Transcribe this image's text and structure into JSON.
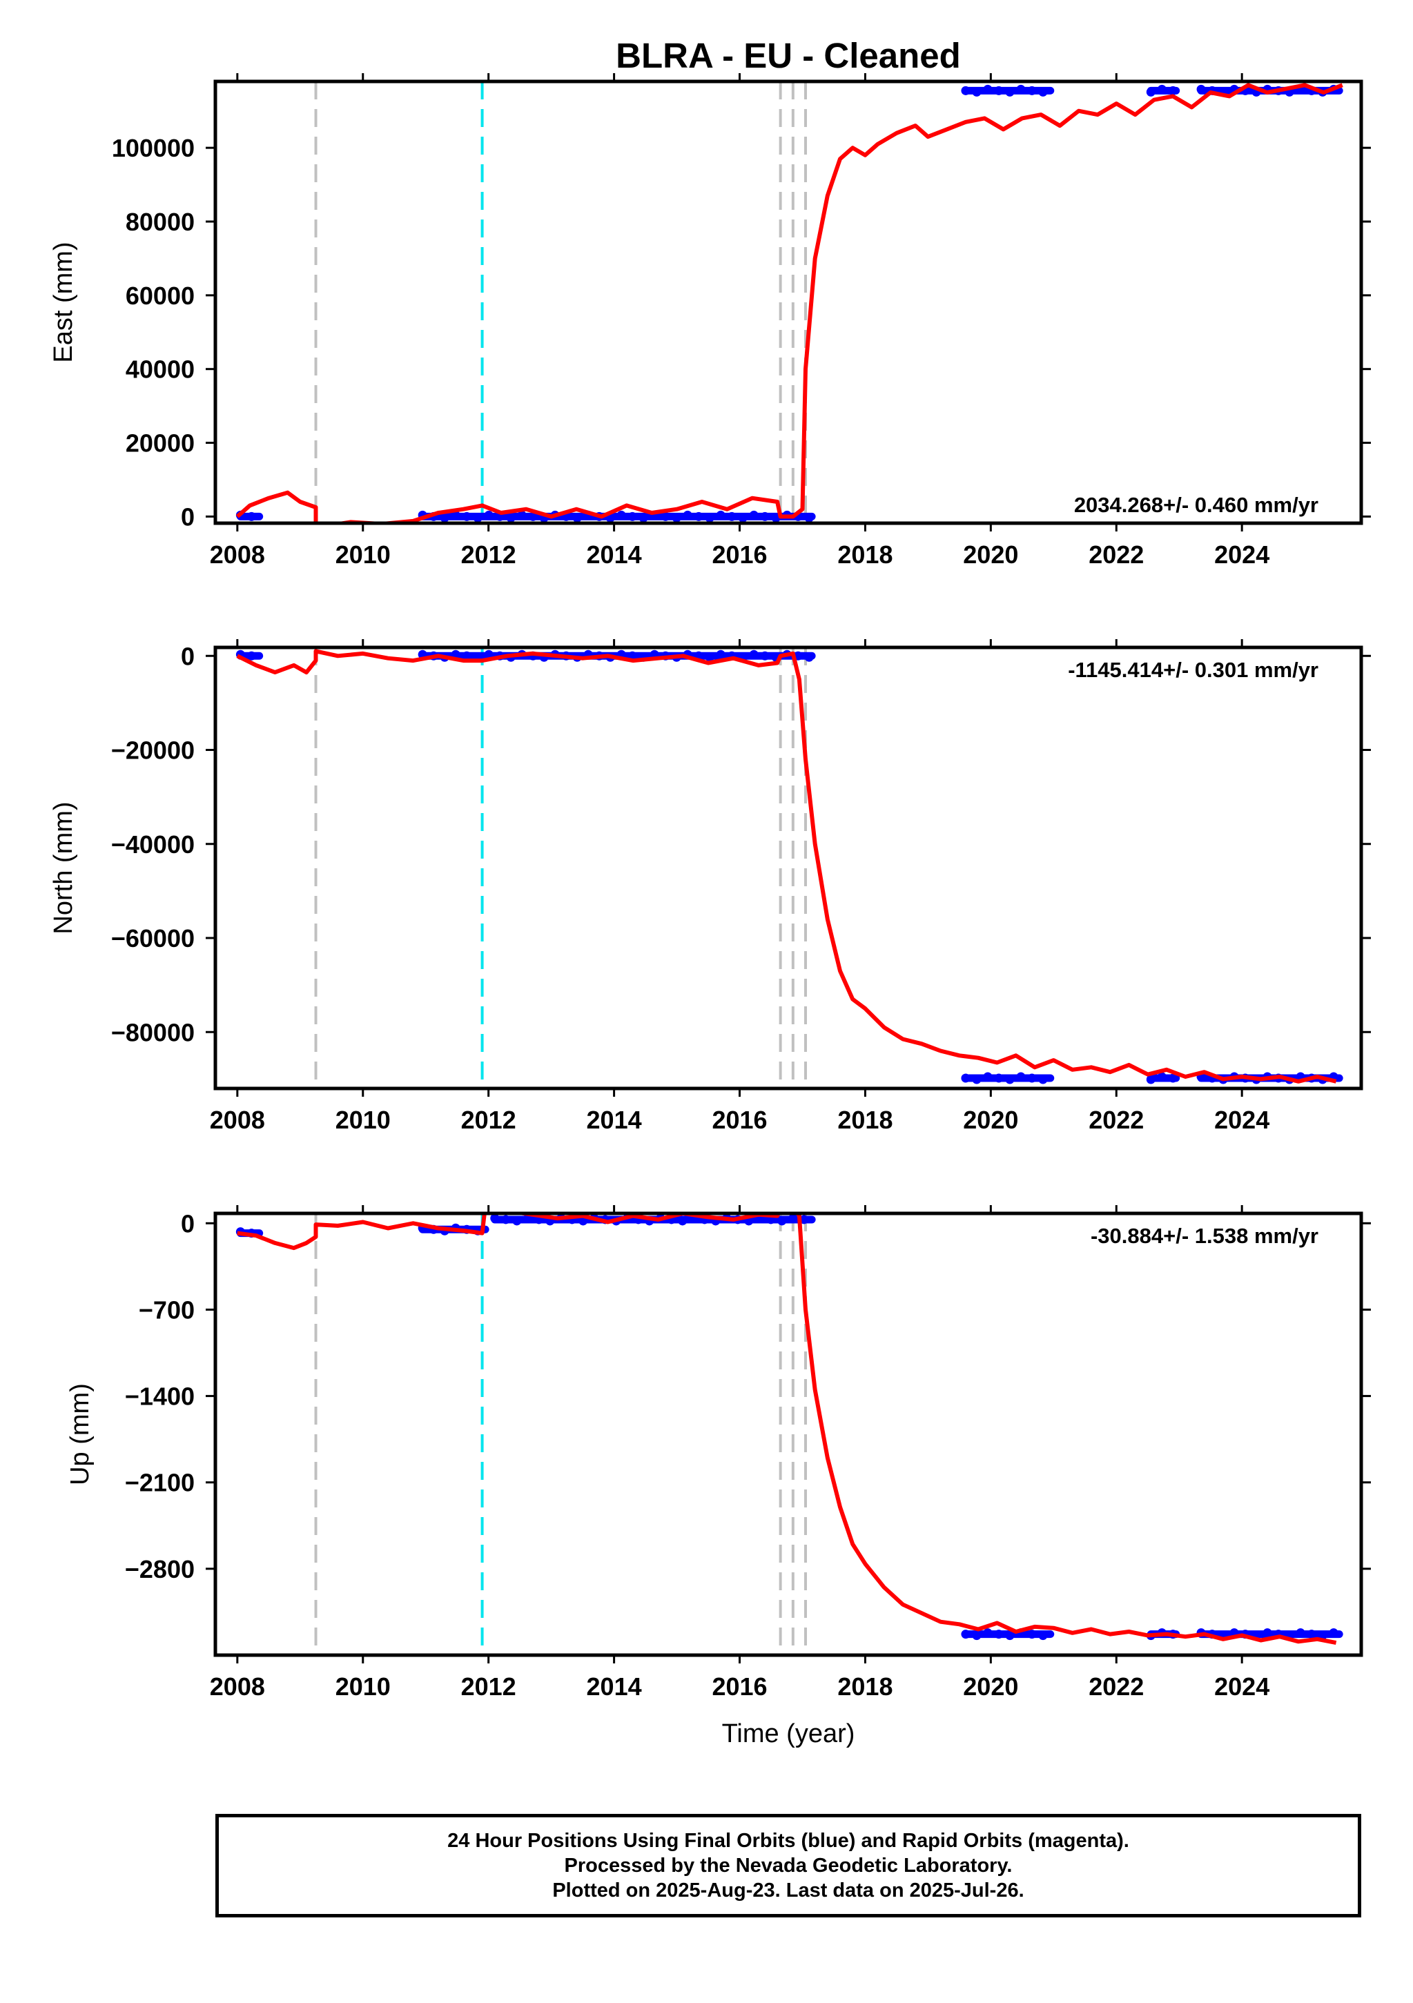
{
  "chart_data": {
    "title": "BLRA  - EU - Cleaned",
    "xlabel": "Time (year)",
    "x_ticks": [
      "2008",
      "2010",
      "2012",
      "2014",
      "2016",
      "2018",
      "2020",
      "2022",
      "2024"
    ],
    "xlim": [
      2007.65,
      2025.9
    ],
    "equipment_changes_gray": [
      2009.25,
      2016.65,
      2016.85,
      2017.05
    ],
    "earthquake_lines_cyan": [
      2011.9
    ],
    "colors": {
      "final_orbits": "#0000ff",
      "model_fit": "#ff0000",
      "equipment": "#c0c0c0",
      "earthquake": "#00e5ee"
    },
    "panels": [
      {
        "ylabel": "East (mm)",
        "ylim": [
          -1800,
          118000
        ],
        "y_ticks": [
          0,
          20000,
          40000,
          60000,
          80000,
          100000
        ],
        "y_tick_labels": [
          "0",
          "20000",
          "40000",
          "60000",
          "80000",
          "100000"
        ],
        "rate_text": "2034.268+/- 0.460 mm/yr",
        "rate_position": "bottom-right",
        "series": [
          {
            "type": "scatter",
            "color": "#0000ff",
            "segments": [
              {
                "x": [
                  2008.05,
                  2008.35
                ],
                "y": 0
              },
              {
                "x": [
                  2010.95,
                  2017.15
                ],
                "y": 0
              },
              {
                "x": [
                  2019.6,
                  2020.95
                ],
                "y": 115500
              },
              {
                "x": [
                  2022.55,
                  2022.95
                ],
                "y": 115500
              },
              {
                "x": [
                  2023.35,
                  2025.55
                ],
                "y": 115500
              }
            ]
          },
          {
            "type": "line",
            "color": "#ff0000",
            "x": [
              2008.0,
              2008.2,
              2008.5,
              2008.8,
              2009.0,
              2009.25,
              2009.25,
              2009.8,
              2010.3,
              2010.8,
              2011.2,
              2011.6,
              2011.9,
              2012.2,
              2012.6,
              2013.0,
              2013.4,
              2013.8,
              2014.2,
              2014.6,
              2015.0,
              2015.4,
              2015.8,
              2016.2,
              2016.6,
              2016.65,
              2016.85,
              2017.0,
              2017.05,
              2017.2,
              2017.4,
              2017.6,
              2017.8,
              2018.0,
              2018.2,
              2018.5,
              2018.8,
              2019.0,
              2019.3,
              2019.6,
              2019.9,
              2020.2,
              2020.5,
              2020.8,
              2021.1,
              2021.4,
              2021.7,
              2022.0,
              2022.3,
              2022.6,
              2022.9,
              2023.2,
              2023.5,
              2023.8,
              2024.1,
              2024.4,
              2024.7,
              2025.0,
              2025.3,
              2025.6
            ],
            "y": [
              0,
              3000,
              5000,
              6500,
              4000,
              2500,
              -3000,
              -1500,
              -2000,
              -1200,
              1000,
              2000,
              3000,
              1000,
              2000,
              0,
              2000,
              0,
              3000,
              1000,
              2000,
              4000,
              2000,
              5000,
              4000,
              0,
              0,
              2000,
              40000,
              70000,
              87000,
              97000,
              100000,
              98000,
              101000,
              104000,
              106000,
              103000,
              105000,
              107000,
              108000,
              105000,
              108000,
              109000,
              106000,
              110000,
              109000,
              112000,
              109000,
              113000,
              114000,
              111000,
              115000,
              114000,
              117000,
              115000,
              116000,
              117000,
              115000,
              117000
            ]
          }
        ]
      },
      {
        "ylabel": "North (mm)",
        "ylim": [
          -92000,
          1800
        ],
        "y_ticks": [
          0,
          -20000,
          -40000,
          -60000,
          -80000
        ],
        "y_tick_labels": [
          "0",
          "−20000",
          "−40000",
          "−60000",
          "−80000"
        ],
        "rate_text": "-1145.414+/- 0.301 mm/yr",
        "rate_position": "top-right",
        "series": [
          {
            "type": "scatter",
            "color": "#0000ff",
            "segments": [
              {
                "x": [
                  2008.05,
                  2008.35
                ],
                "y": 0
              },
              {
                "x": [
                  2010.95,
                  2017.15
                ],
                "y": 0
              },
              {
                "x": [
                  2019.6,
                  2020.95
                ],
                "y": -89800
              },
              {
                "x": [
                  2022.55,
                  2022.95
                ],
                "y": -89800
              },
              {
                "x": [
                  2023.35,
                  2025.55
                ],
                "y": -89800
              }
            ]
          },
          {
            "type": "line",
            "color": "#ff0000",
            "x": [
              2008.0,
              2008.3,
              2008.6,
              2008.9,
              2009.1,
              2009.25,
              2009.25,
              2009.6,
              2010.0,
              2010.4,
              2010.8,
              2011.2,
              2011.6,
              2011.9,
              2012.3,
              2012.7,
              2013.1,
              2013.5,
              2013.9,
              2014.3,
              2014.7,
              2015.1,
              2015.5,
              2015.9,
              2016.3,
              2016.6,
              2016.65,
              2016.85,
              2016.95,
              2017.05,
              2017.2,
              2017.4,
              2017.6,
              2017.8,
              2018.0,
              2018.3,
              2018.6,
              2018.9,
              2019.2,
              2019.5,
              2019.8,
              2020.1,
              2020.4,
              2020.7,
              2021.0,
              2021.3,
              2021.6,
              2021.9,
              2022.2,
              2022.5,
              2022.8,
              2023.1,
              2023.4,
              2023.7,
              2024.0,
              2024.3,
              2024.6,
              2024.9,
              2025.2,
              2025.5
            ],
            "y": [
              0,
              -2000,
              -3500,
              -2000,
              -3500,
              -1000,
              1000,
              0,
              500,
              -500,
              -1000,
              0,
              -1000,
              -1000,
              0,
              500,
              0,
              -500,
              0,
              -1000,
              -500,
              0,
              -1500,
              -500,
              -2000,
              -1500,
              0,
              500,
              -5000,
              -22000,
              -40000,
              -56000,
              -67000,
              -73000,
              -75000,
              -79000,
              -81500,
              -82500,
              -84000,
              -85000,
              -85500,
              -86500,
              -85000,
              -87500,
              -86000,
              -88000,
              -87500,
              -88500,
              -87000,
              -89000,
              -88000,
              -89500,
              -88500,
              -90000,
              -89500,
              -90000,
              -89500,
              -90500,
              -89500,
              -90500
            ]
          }
        ]
      },
      {
        "ylabel": "Up (mm)",
        "ylim": [
          -3500,
          80
        ],
        "y_ticks": [
          0,
          -700,
          -1400,
          -2100,
          -2800
        ],
        "y_tick_labels": [
          "0",
          "−700",
          "−1400",
          "−2100",
          "−2800"
        ],
        "rate_text": "-30.884+/- 1.538 mm/yr",
        "rate_position": "top-right",
        "series": [
          {
            "type": "scatter",
            "color": "#0000ff",
            "segments": [
              {
                "x": [
                  2008.05,
                  2008.35
                ],
                "y": -80
              },
              {
                "x": [
                  2010.95,
                  2011.95
                ],
                "y": -50
              },
              {
                "x": [
                  2012.1,
                  2017.15
                ],
                "y": 30
              },
              {
                "x": [
                  2019.6,
                  2020.95
                ],
                "y": -3330
              },
              {
                "x": [
                  2022.55,
                  2022.95
                ],
                "y": -3330
              },
              {
                "x": [
                  2023.35,
                  2025.55
                ],
                "y": -3330
              }
            ]
          },
          {
            "type": "line",
            "color": "#ff0000",
            "x": [
              2008.0,
              2008.3,
              2008.6,
              2008.9,
              2009.1,
              2009.25,
              2009.25,
              2009.6,
              2010.0,
              2010.4,
              2010.8,
              2011.2,
              2011.6,
              2011.9,
              2011.95,
              2012.3,
              2012.7,
              2013.1,
              2013.5,
              2013.9,
              2014.3,
              2014.7,
              2015.1,
              2015.5,
              2015.9,
              2016.3,
              2016.6,
              2016.65,
              2016.85,
              2016.95,
              2017.05,
              2017.2,
              2017.4,
              2017.6,
              2017.8,
              2018.0,
              2018.3,
              2018.6,
              2018.9,
              2019.2,
              2019.5,
              2019.8,
              2020.1,
              2020.4,
              2020.7,
              2021.0,
              2021.3,
              2021.6,
              2021.9,
              2022.2,
              2022.5,
              2022.8,
              2023.1,
              2023.4,
              2023.7,
              2024.0,
              2024.3,
              2024.6,
              2024.9,
              2025.2,
              2025.5
            ],
            "y": [
              -80,
              -100,
              -160,
              -200,
              -160,
              -110,
              -10,
              -20,
              10,
              -40,
              0,
              -40,
              -60,
              -80,
              140,
              100,
              70,
              40,
              60,
              10,
              60,
              30,
              80,
              50,
              30,
              70,
              60,
              120,
              130,
              60,
              -700,
              -1350,
              -1900,
              -2300,
              -2600,
              -2760,
              -2950,
              -3090,
              -3160,
              -3230,
              -3250,
              -3290,
              -3240,
              -3310,
              -3270,
              -3280,
              -3320,
              -3290,
              -3330,
              -3310,
              -3340,
              -3330,
              -3350,
              -3330,
              -3370,
              -3340,
              -3380,
              -3350,
              -3390,
              -3370,
              -3400
            ]
          }
        ]
      }
    ]
  },
  "footer": {
    "line1": "24 Hour Positions Using Final Orbits (blue) and Rapid Orbits (magenta).",
    "line2": "Processed by the Nevada Geodetic Laboratory.",
    "line3": "Plotted on 2025-Aug-23. Last data on 2025-Jul-26."
  }
}
